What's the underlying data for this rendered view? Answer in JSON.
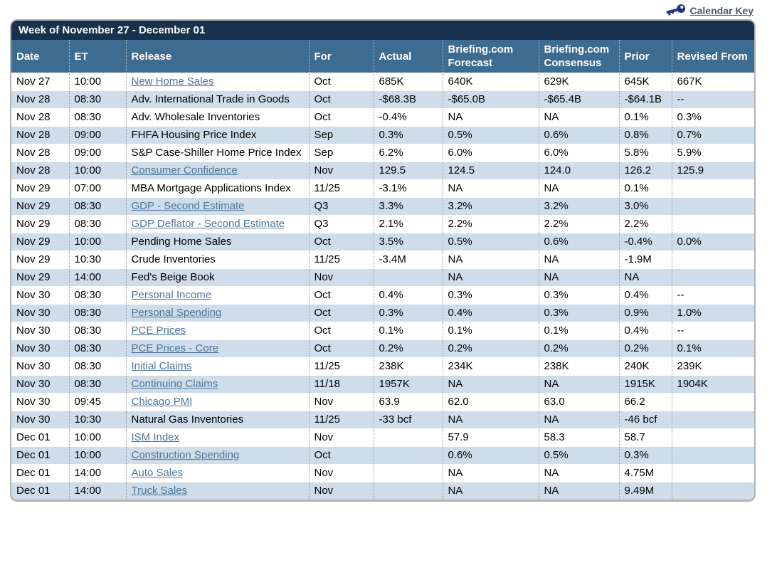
{
  "calendar_key": {
    "label": "Calendar Key"
  },
  "table": {
    "title": "Week of November 27 - December 01",
    "columns": [
      "Date",
      "ET",
      "Release",
      "For",
      "Actual",
      "Briefing.com Forecast",
      "Briefing.com Consensus",
      "Prior",
      "Revised From"
    ],
    "rows": [
      {
        "date": "Nov 27",
        "et": "10:00",
        "release": "New Home Sales",
        "is_link": true,
        "for": "Oct",
        "actual": "685K",
        "forecast": "640K",
        "consensus": "629K",
        "prior": "645K",
        "revised": "667K"
      },
      {
        "date": "Nov 28",
        "et": "08:30",
        "release": "Adv. International Trade in Goods",
        "is_link": false,
        "for": "Oct",
        "actual": "-$68.3B",
        "forecast": "-$65.0B",
        "consensus": "-$65.4B",
        "prior": "-$64.1B",
        "revised": "--"
      },
      {
        "date": "Nov 28",
        "et": "08:30",
        "release": "Adv. Wholesale Inventories",
        "is_link": false,
        "for": "Oct",
        "actual": "-0.4%",
        "forecast": "NA",
        "consensus": "NA",
        "prior": "0.1%",
        "revised": "0.3%"
      },
      {
        "date": "Nov 28",
        "et": "09:00",
        "release": "FHFA Housing Price Index",
        "is_link": false,
        "for": "Sep",
        "actual": "0.3%",
        "forecast": "0.5%",
        "consensus": "0.6%",
        "prior": "0.8%",
        "revised": "0.7%"
      },
      {
        "date": "Nov 28",
        "et": "09:00",
        "release": "S&P Case-Shiller Home Price Index",
        "is_link": false,
        "for": "Sep",
        "actual": "6.2%",
        "forecast": "6.0%",
        "consensus": "6.0%",
        "prior": "5.8%",
        "revised": "5.9%"
      },
      {
        "date": "Nov 28",
        "et": "10:00",
        "release": "Consumer Confidence",
        "is_link": true,
        "for": "Nov",
        "actual": "129.5",
        "forecast": "124.5",
        "consensus": "124.0",
        "prior": "126.2",
        "revised": "125.9"
      },
      {
        "date": "Nov 29",
        "et": "07:00",
        "release": "MBA Mortgage Applications Index",
        "is_link": false,
        "for": "11/25",
        "actual": "-3.1%",
        "forecast": "NA",
        "consensus": "NA",
        "prior": "0.1%",
        "revised": ""
      },
      {
        "date": "Nov 29",
        "et": "08:30",
        "release": "GDP - Second Estimate",
        "is_link": true,
        "for": "Q3",
        "actual": "3.3%",
        "forecast": "3.2%",
        "consensus": "3.2%",
        "prior": "3.0%",
        "revised": ""
      },
      {
        "date": "Nov 29",
        "et": "08:30",
        "release": "GDP Deflator - Second Estimate",
        "is_link": true,
        "for": "Q3",
        "actual": "2.1%",
        "forecast": "2.2%",
        "consensus": "2.2%",
        "prior": "2.2%",
        "revised": ""
      },
      {
        "date": "Nov 29",
        "et": "10:00",
        "release": "Pending Home Sales",
        "is_link": false,
        "for": "Oct",
        "actual": "3.5%",
        "forecast": "0.5%",
        "consensus": "0.6%",
        "prior": "-0.4%",
        "revised": "0.0%"
      },
      {
        "date": "Nov 29",
        "et": "10:30",
        "release": "Crude Inventories",
        "is_link": false,
        "for": "11/25",
        "actual": "-3.4M",
        "forecast": "NA",
        "consensus": "NA",
        "prior": "-1.9M",
        "revised": ""
      },
      {
        "date": "Nov 29",
        "et": "14:00",
        "release": "Fed's Beige Book",
        "is_link": false,
        "for": "Nov",
        "actual": "",
        "forecast": "NA",
        "consensus": "NA",
        "prior": "NA",
        "revised": ""
      },
      {
        "date": "Nov 30",
        "et": "08:30",
        "release": "Personal Income",
        "is_link": true,
        "for": "Oct",
        "actual": "0.4%",
        "forecast": "0.3%",
        "consensus": "0.3%",
        "prior": "0.4%",
        "revised": "--"
      },
      {
        "date": "Nov 30",
        "et": "08:30",
        "release": "Personal Spending",
        "is_link": true,
        "for": "Oct",
        "actual": "0.3%",
        "forecast": "0.4%",
        "consensus": "0.3%",
        "prior": "0.9%",
        "revised": "1.0%"
      },
      {
        "date": "Nov 30",
        "et": "08:30",
        "release": "PCE Prices",
        "is_link": true,
        "for": "Oct",
        "actual": "0.1%",
        "forecast": "0.1%",
        "consensus": "0.1%",
        "prior": "0.4%",
        "revised": "--"
      },
      {
        "date": "Nov 30",
        "et": "08:30",
        "release": "PCE Prices - Core",
        "is_link": true,
        "for": "Oct",
        "actual": "0.2%",
        "forecast": "0.2%",
        "consensus": "0.2%",
        "prior": "0.2%",
        "revised": "0.1%"
      },
      {
        "date": "Nov 30",
        "et": "08:30",
        "release": "Initial Claims",
        "is_link": true,
        "for": "11/25",
        "actual": "238K",
        "forecast": "234K",
        "consensus": "238K",
        "prior": "240K",
        "revised": "239K"
      },
      {
        "date": "Nov 30",
        "et": "08:30",
        "release": "Continuing Claims",
        "is_link": true,
        "for": "11/18",
        "actual": "1957K",
        "forecast": "NA",
        "consensus": "NA",
        "prior": "1915K",
        "revised": "1904K"
      },
      {
        "date": "Nov 30",
        "et": "09:45",
        "release": "Chicago PMI",
        "is_link": true,
        "for": "Nov",
        "actual": "63.9",
        "forecast": "62.0",
        "consensus": "63.0",
        "prior": "66.2",
        "revised": ""
      },
      {
        "date": "Nov 30",
        "et": "10:30",
        "release": "Natural Gas Inventories",
        "is_link": false,
        "for": "11/25",
        "actual": "-33 bcf",
        "forecast": "NA",
        "consensus": "NA",
        "prior": "-46 bcf",
        "revised": ""
      },
      {
        "date": "Dec 01",
        "et": "10:00",
        "release": "ISM Index",
        "is_link": true,
        "for": "Nov",
        "actual": "",
        "forecast": "57.9",
        "consensus": "58.3",
        "prior": "58.7",
        "revised": ""
      },
      {
        "date": "Dec 01",
        "et": "10:00",
        "release": "Construction Spending",
        "is_link": true,
        "for": "Oct",
        "actual": "",
        "forecast": "0.6%",
        "consensus": "0.5%",
        "prior": "0.3%",
        "revised": ""
      },
      {
        "date": "Dec 01",
        "et": "14:00",
        "release": "Auto Sales",
        "is_link": true,
        "for": "Nov",
        "actual": "",
        "forecast": "NA",
        "consensus": "NA",
        "prior": "4.75M",
        "revised": ""
      },
      {
        "date": "Dec 01",
        "et": "14:00",
        "release": "Truck Sales",
        "is_link": true,
        "for": "Nov",
        "actual": "",
        "forecast": "NA",
        "consensus": "NA",
        "prior": "9.49M",
        "revised": ""
      }
    ]
  },
  "colors": {
    "title_bar": "#17314f",
    "header_bar": "#3e6b90",
    "shaded_row": "#cedde9",
    "link": "#4d7499",
    "key_link": "#47596b",
    "key_icon": "#23357f"
  }
}
